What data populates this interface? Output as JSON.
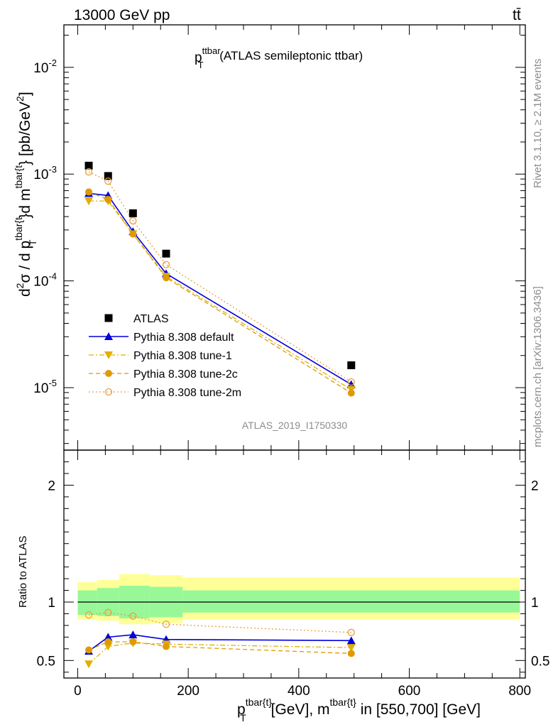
{
  "header": {
    "left": "13000 GeV pp",
    "right": "tt̄"
  },
  "plot_title": {
    "main": "p",
    "sup": "ttbar",
    "sub": "T",
    "rest": " (ATLAS semileptonic ttbar)"
  },
  "side_labels": {
    "rivet": "Rivet 3.1.10, ≥ 2.1M events",
    "mcplots": "mcplots.cern.ch [arXiv:1306.3436]"
  },
  "analysis_id": "ATLAS_2019_I1750330",
  "ylabel_main": {
    "d2": "d",
    "d2_sup": "2",
    "sigma": "σ / d p",
    "sup1": "tbar{t",
    "sub1": "T",
    "mid": "}d m",
    "sup2": "tbar{t",
    "end": "} [pb/GeV",
    "end_sup": "2",
    "close": "]"
  },
  "ylabel_ratio": "Ratio to ATLAS",
  "xlabel": {
    "p": "p",
    "sup1": "tbar{t}",
    "sub1": "T",
    "mid": "[GeV], m",
    "sup2": "tbar{t}",
    "end": " in [550,700] [GeV]"
  },
  "colors": {
    "data": "#000000",
    "default": "#0000dd",
    "tune1": "#e0b000",
    "tune2c": "#e09a00",
    "tune2m": "#e8a040",
    "band_inner": "#98f898",
    "band_outer": "#ffff98"
  },
  "chart_data": [
    {
      "type": "scatter",
      "panel": "main",
      "yscale": "log",
      "xlim": [
        -25,
        810
      ],
      "ylim": [
        2.6e-06,
        0.025
      ],
      "y_ticks": [
        {
          "base": "10",
          "exp": "-5",
          "value": 1e-05
        },
        {
          "base": "10",
          "exp": "-4",
          "value": 0.0001
        },
        {
          "base": "10",
          "exp": "-3",
          "value": 0.001
        },
        {
          "base": "10",
          "exp": "-2",
          "value": 0.01
        }
      ],
      "x": [
        20,
        55,
        100,
        160,
        495
      ],
      "series": [
        {
          "name": "ATLAS",
          "key": "data",
          "marker": "square",
          "values": [
            0.0012,
            0.00096,
            0.00043,
            0.00018,
            1.62e-05
          ]
        },
        {
          "name": "Pythia 8.308 default",
          "key": "default",
          "marker": "triangle-up",
          "dash": "",
          "values": [
            0.00066,
            0.00063,
            0.00029,
            0.000117,
            1.07e-05
          ]
        },
        {
          "name": "Pythia 8.308 tune-1",
          "key": "tune1",
          "marker": "triangle-down",
          "dash": "7,3,2,3",
          "values": [
            0.00056,
            0.00056,
            0.000275,
            0.00011,
            9.6e-06
          ]
        },
        {
          "name": "Pythia 8.308 tune-2c",
          "key": "tune2c",
          "marker": "circle",
          "dash": "6,4",
          "values": [
            0.00068,
            0.00058,
            0.000275,
            0.000107,
            8.9e-06
          ]
        },
        {
          "name": "Pythia 8.308 tune-2m",
          "key": "tune2m",
          "marker": "circle-open",
          "dash": "2,3",
          "values": [
            0.00105,
            0.00086,
            0.000365,
            0.000142,
            1.13e-05
          ]
        }
      ]
    },
    {
      "type": "line",
      "panel": "ratio",
      "ylim": [
        0.35,
        2.3
      ],
      "y_ticks": [
        0.5,
        1,
        2
      ],
      "x_ticks": [
        0,
        200,
        400,
        600,
        800
      ],
      "bins": [
        {
          "x0": 0,
          "x1": 35,
          "inner": [
            0.89,
            1.1
          ],
          "outer": [
            0.85,
            1.17
          ]
        },
        {
          "x0": 35,
          "x1": 75,
          "inner": [
            0.88,
            1.12
          ],
          "outer": [
            0.84,
            1.19
          ]
        },
        {
          "x0": 75,
          "x1": 130,
          "inner": [
            0.86,
            1.14
          ],
          "outer": [
            0.81,
            1.24
          ]
        },
        {
          "x0": 130,
          "x1": 190,
          "inner": [
            0.87,
            1.13
          ],
          "outer": [
            0.82,
            1.23
          ]
        },
        {
          "x0": 190,
          "x1": 800,
          "inner": [
            0.91,
            1.1
          ],
          "outer": [
            0.85,
            1.21
          ]
        }
      ],
      "x": [
        20,
        55,
        100,
        160,
        495
      ],
      "series": [
        {
          "key": "default",
          "marker": "triangle-up",
          "dash": "",
          "values": [
            0.58,
            0.7,
            0.72,
            0.68,
            0.67
          ]
        },
        {
          "key": "tune1",
          "marker": "triangle-down",
          "dash": "7,3,2,3",
          "values": [
            0.47,
            0.62,
            0.65,
            0.64,
            0.61
          ]
        },
        {
          "key": "tune2c",
          "marker": "circle",
          "dash": "6,4",
          "values": [
            0.59,
            0.66,
            0.66,
            0.62,
            0.56
          ]
        },
        {
          "key": "tune2m",
          "marker": "circle-open",
          "dash": "2,3",
          "values": [
            0.89,
            0.91,
            0.88,
            0.81,
            0.74
          ]
        }
      ]
    }
  ]
}
